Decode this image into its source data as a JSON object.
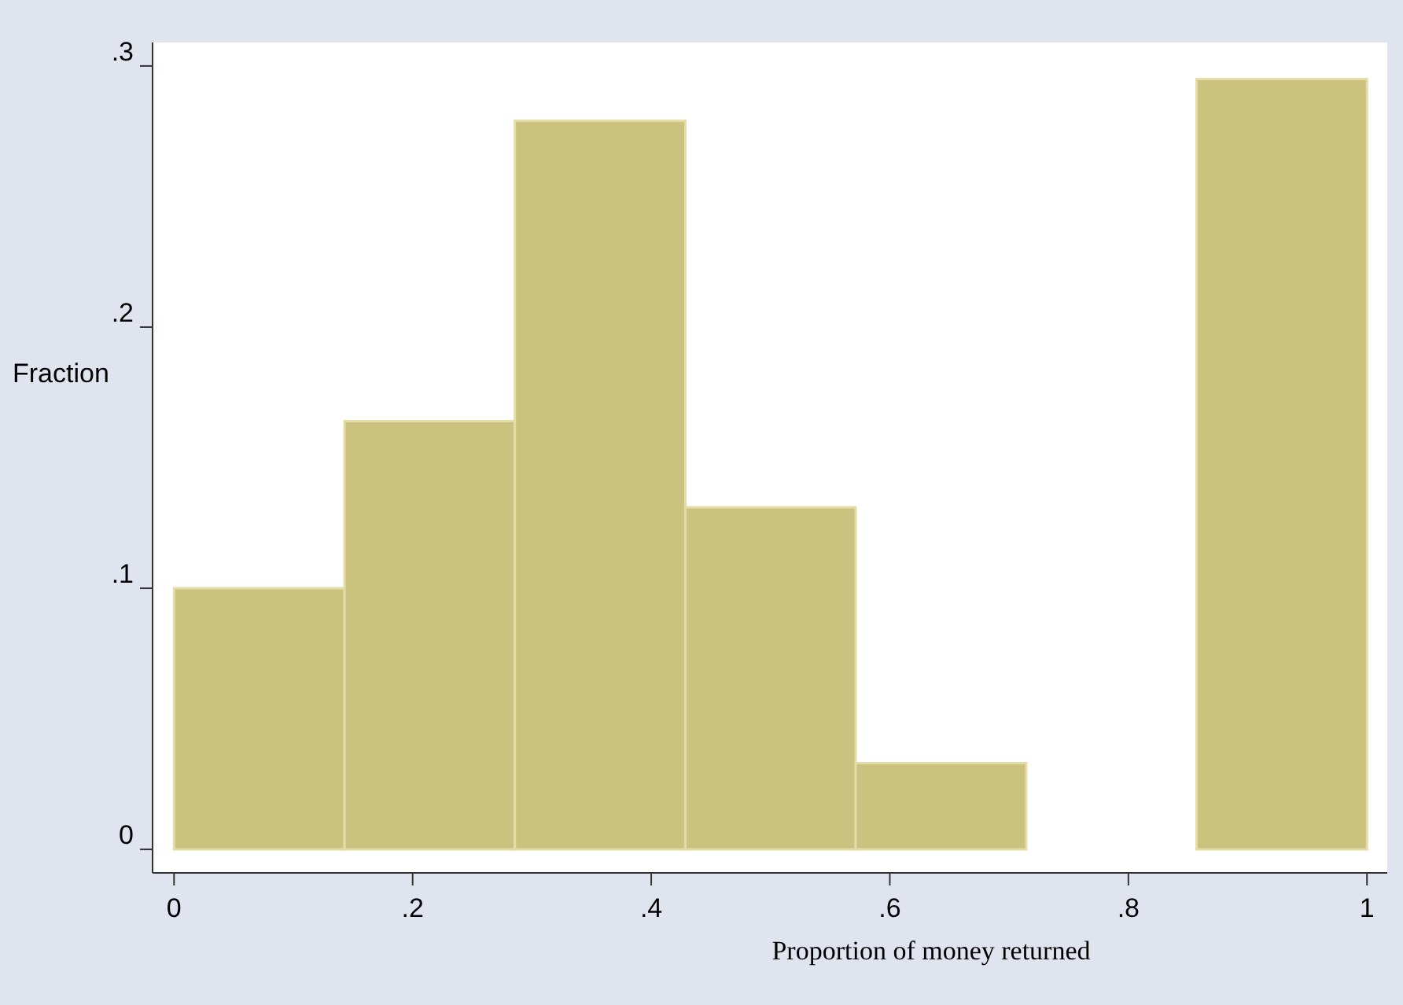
{
  "chart_data": {
    "type": "histogram",
    "xlabel": "Proportion of money returned",
    "ylabel": "Fraction",
    "bins": [
      0,
      0.1429,
      0.2857,
      0.4286,
      0.5714,
      0.7143,
      0.8571,
      1
    ],
    "values": [
      0.1,
      0.164,
      0.279,
      0.131,
      0.033,
      0,
      0.295
    ],
    "color": "#cbc27f",
    "xlim": [
      -0.018,
      1.017
    ],
    "ylim": [
      -0.009,
      0.309
    ],
    "xticks": [
      {
        "value": 0,
        "label": "0"
      },
      {
        "value": 0.2,
        "label": ".2"
      },
      {
        "value": 0.4,
        "label": ".4"
      },
      {
        "value": 0.6,
        "label": ".6"
      },
      {
        "value": 0.8,
        "label": ".8"
      },
      {
        "value": 1,
        "label": "1"
      }
    ],
    "yticks": [
      {
        "value": 0,
        "label": "0"
      },
      {
        "value": 0.1,
        "label": ".1"
      },
      {
        "value": 0.2,
        "label": ".2"
      },
      {
        "value": 0.3,
        "label": ".3"
      }
    ]
  }
}
